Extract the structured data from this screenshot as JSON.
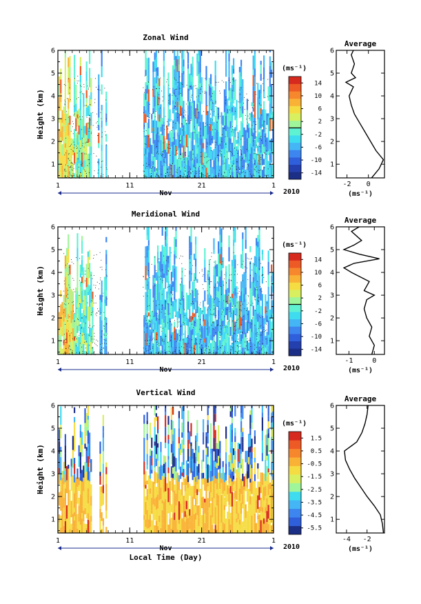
{
  "chart_data": [
    {
      "type": "heatmap",
      "title": "Zonal Wind",
      "ylabel": "Height (km)",
      "yticks": [
        "1",
        "2",
        "3",
        "4",
        "5",
        "6"
      ],
      "ylim": [
        0.4,
        6
      ],
      "xticks": [
        "1",
        "11",
        "21",
        "1"
      ],
      "xlim": [
        1,
        31
      ],
      "month": "Nov",
      "year": "2010",
      "colorbar": {
        "unit": "(ms⁻¹)",
        "ticks": [
          "14",
          "10",
          "6",
          "2",
          "-2",
          "-6",
          "-10",
          "-14"
        ],
        "range": [
          -16,
          16
        ],
        "zero_line": 0
      },
      "data_gap_days": [
        [
          7.8,
          12.8
        ]
      ],
      "average": {
        "title": "Average",
        "xlabel": "(ms⁻¹)",
        "xticks": [
          "-2",
          "0"
        ],
        "xlim": [
          -3,
          1.5
        ],
        "height": [
          0.4,
          0.8,
          1.2,
          1.6,
          2.0,
          2.4,
          2.8,
          3.2,
          3.6,
          4.0,
          4.4,
          4.6,
          4.8,
          5.0,
          5.4,
          5.8,
          6.0
        ],
        "value": [
          0.3,
          1.0,
          1.4,
          0.7,
          0.2,
          -0.3,
          -0.8,
          -1.3,
          -1.6,
          -1.8,
          -1.4,
          -2.1,
          -1.2,
          -1.6,
          -1.3,
          -1.6,
          -1.4
        ]
      }
    },
    {
      "type": "heatmap",
      "title": "Meridional Wind",
      "ylabel": "Height (km)",
      "yticks": [
        "1",
        "2",
        "3",
        "4",
        "5",
        "6"
      ],
      "ylim": [
        0.4,
        6
      ],
      "xticks": [
        "1",
        "11",
        "21",
        "1"
      ],
      "xlim": [
        1,
        31
      ],
      "month": "Nov",
      "year": "2010",
      "colorbar": {
        "unit": "(ms⁻¹)",
        "ticks": [
          "14",
          "10",
          "6",
          "2",
          "-2",
          "-6",
          "-10",
          "-14"
        ],
        "range": [
          -16,
          16
        ],
        "zero_line": 0
      },
      "data_gap_days": [
        [
          7.8,
          12.8
        ]
      ],
      "average": {
        "title": "Average",
        "xlabel": "(ms⁻¹)",
        "xticks": [
          "-1",
          "0"
        ],
        "xlim": [
          -1.5,
          0.4
        ],
        "height": [
          0.4,
          0.8,
          1.2,
          1.6,
          2.0,
          2.4,
          2.8,
          3.0,
          3.2,
          3.6,
          4.0,
          4.2,
          4.4,
          4.6,
          4.8,
          5.0,
          5.2,
          5.4,
          5.8,
          6.0
        ],
        "value": [
          -0.1,
          0.0,
          -0.2,
          -0.1,
          -0.3,
          -0.4,
          -0.3,
          0.0,
          -0.4,
          -0.2,
          -0.9,
          -1.2,
          -0.8,
          0.2,
          -0.6,
          -1.2,
          -0.8,
          -0.5,
          -0.9,
          -0.6
        ]
      }
    },
    {
      "type": "heatmap",
      "title": "Vertical Wind",
      "ylabel": "Height (km)",
      "xlabel": "Local Time (Day)",
      "yticks": [
        "1",
        "2",
        "3",
        "4",
        "5",
        "6"
      ],
      "ylim": [
        0.4,
        6
      ],
      "xticks": [
        "1",
        "11",
        "21",
        "1"
      ],
      "xlim": [
        1,
        31
      ],
      "month": "Nov",
      "year": "2010",
      "colorbar": {
        "unit": "(ms⁻¹)",
        "ticks": [
          "1.5",
          "0.5",
          "-0.5",
          "-1.5",
          "-2.5",
          "-3.5",
          "-4.5",
          "-5.5"
        ],
        "range": [
          -6,
          2
        ]
      },
      "data_gap_days": [
        [
          7.8,
          12.8
        ]
      ],
      "average": {
        "title": "Average",
        "xlabel": "(ms⁻¹)",
        "xticks": [
          "-4",
          "-2"
        ],
        "xlim": [
          -5,
          -0.3
        ],
        "height": [
          0.4,
          0.8,
          1.2,
          1.6,
          2.0,
          2.4,
          2.8,
          3.2,
          3.6,
          4.0,
          4.2,
          4.4,
          4.8,
          5.2,
          5.6,
          6.0
        ],
        "value": [
          -0.4,
          -0.5,
          -0.7,
          -1.3,
          -2.0,
          -2.6,
          -3.2,
          -3.7,
          -4.1,
          -4.2,
          -3.6,
          -3.0,
          -2.5,
          -2.2,
          -2.0,
          -1.9
        ]
      }
    }
  ]
}
